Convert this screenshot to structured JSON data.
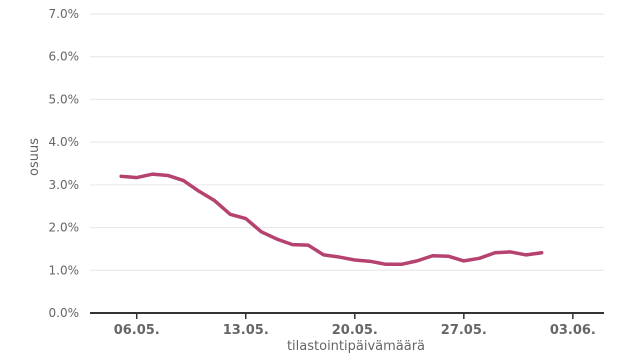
{
  "chart_data": {
    "type": "line",
    "xlabel": "tilastointipäivämäärä",
    "ylabel": "osuus",
    "ylim": [
      0,
      7
    ],
    "y_ticks": [
      {
        "value": 0,
        "label": "0.0%"
      },
      {
        "value": 1,
        "label": "1.0%"
      },
      {
        "value": 2,
        "label": "2.0%"
      },
      {
        "value": 3,
        "label": "3.0%"
      },
      {
        "value": 4,
        "label": "4.0%"
      },
      {
        "value": 5,
        "label": "5.0%"
      },
      {
        "value": 6,
        "label": "6.0%"
      },
      {
        "value": 7,
        "label": "7.0%"
      }
    ],
    "x_range": [
      "2020-05-03",
      "2020-06-05"
    ],
    "x_ticks": [
      {
        "date": "2020-05-06",
        "label": "06.05."
      },
      {
        "date": "2020-05-13",
        "label": "13.05."
      },
      {
        "date": "2020-05-20",
        "label": "20.05."
      },
      {
        "date": "2020-05-27",
        "label": "27.05."
      },
      {
        "date": "2020-06-03",
        "label": "03.06."
      }
    ],
    "grid": true,
    "legend": "none",
    "series": [
      {
        "color": "#b5426f",
        "points": [
          {
            "x": "2020-05-05",
            "y": 3.2
          },
          {
            "x": "2020-05-06",
            "y": 3.17
          },
          {
            "x": "2020-05-07",
            "y": 3.25
          },
          {
            "x": "2020-05-08",
            "y": 3.22
          },
          {
            "x": "2020-05-09",
            "y": 3.1
          },
          {
            "x": "2020-05-10",
            "y": 2.85
          },
          {
            "x": "2020-05-11",
            "y": 2.63
          },
          {
            "x": "2020-05-12",
            "y": 2.31
          },
          {
            "x": "2020-05-13",
            "y": 2.21
          },
          {
            "x": "2020-05-14",
            "y": 1.9
          },
          {
            "x": "2020-05-15",
            "y": 1.73
          },
          {
            "x": "2020-05-16",
            "y": 1.6
          },
          {
            "x": "2020-05-17",
            "y": 1.59
          },
          {
            "x": "2020-05-18",
            "y": 1.36
          },
          {
            "x": "2020-05-19",
            "y": 1.31
          },
          {
            "x": "2020-05-20",
            "y": 1.24
          },
          {
            "x": "2020-05-21",
            "y": 1.21
          },
          {
            "x": "2020-05-22",
            "y": 1.14
          },
          {
            "x": "2020-05-23",
            "y": 1.14
          },
          {
            "x": "2020-05-24",
            "y": 1.22
          },
          {
            "x": "2020-05-25",
            "y": 1.34
          },
          {
            "x": "2020-05-26",
            "y": 1.33
          },
          {
            "x": "2020-05-27",
            "y": 1.22
          },
          {
            "x": "2020-05-28",
            "y": 1.28
          },
          {
            "x": "2020-05-29",
            "y": 1.41
          },
          {
            "x": "2020-05-30",
            "y": 1.43
          },
          {
            "x": "2020-05-31",
            "y": 1.36
          },
          {
            "x": "2020-06-01",
            "y": 1.41
          }
        ]
      }
    ]
  }
}
